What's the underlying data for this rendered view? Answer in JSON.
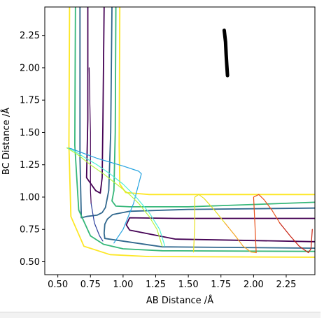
{
  "chart_data": {
    "type": "line",
    "xlabel": "AB Distance /Å",
    "ylabel": "BC Distance /Å",
    "xlim": [
      0.4,
      2.47
    ],
    "ylim": [
      0.4,
      2.47
    ],
    "xticks": [
      "0.50",
      "0.75",
      "1.00",
      "1.25",
      "1.50",
      "1.75",
      "2.00",
      "2.25"
    ],
    "yticks": [
      "0.50",
      "0.75",
      "1.00",
      "1.25",
      "1.50",
      "1.75",
      "2.00",
      "2.25"
    ],
    "grid": false,
    "contours": [
      {
        "color": "#440154",
        "points": [
          [
            0.855,
            2.47
          ],
          [
            0.845,
            1.55
          ],
          [
            0.84,
            1.15
          ],
          [
            0.825,
            1.03
          ],
          [
            0.79,
            1.05
          ],
          [
            0.72,
            1.15
          ],
          [
            0.73,
            1.6
          ],
          [
            0.73,
            2.47
          ]
        ]
      },
      {
        "color": "#440154",
        "points": [
          [
            2.47,
            0.655
          ],
          [
            1.4,
            0.675
          ],
          [
            1.05,
            0.745
          ],
          [
            1.025,
            0.785
          ],
          [
            1.05,
            0.84
          ],
          [
            1.4,
            0.835
          ],
          [
            2.47,
            0.835
          ]
        ]
      },
      {
        "color": "#31688e",
        "points": [
          [
            0.915,
            2.47
          ],
          [
            0.905,
            1.5
          ],
          [
            0.89,
            1.05
          ],
          [
            0.865,
            0.92
          ],
          [
            0.84,
            0.88
          ],
          [
            0.8,
            0.86
          ],
          [
            0.72,
            0.85
          ],
          [
            0.68,
            0.84
          ],
          [
            0.67,
            1.3
          ],
          [
            0.67,
            2.47
          ]
        ]
      },
      {
        "color": "#31688e",
        "points": [
          [
            2.47,
            0.915
          ],
          [
            1.5,
            0.905
          ],
          [
            1.05,
            0.89
          ],
          [
            0.92,
            0.865
          ],
          [
            0.88,
            0.83
          ],
          [
            0.86,
            0.79
          ],
          [
            0.855,
            0.72
          ],
          [
            0.86,
            0.68
          ],
          [
            1.3,
            0.615
          ],
          [
            2.47,
            0.605
          ]
        ]
      },
      {
        "color": "#35b779",
        "points": [
          [
            0.945,
            2.47
          ],
          [
            0.94,
            1.5
          ],
          [
            0.93,
            1.05
          ],
          [
            0.915,
            0.97
          ],
          [
            0.945,
            0.93
          ],
          [
            1.05,
            0.925
          ],
          [
            1.5,
            0.925
          ],
          [
            2.47,
            0.96
          ]
        ]
      },
      {
        "color": "#35b779",
        "points": [
          [
            0.635,
            2.47
          ],
          [
            0.63,
            1.4
          ],
          [
            0.66,
            0.9
          ],
          [
            0.75,
            0.7
          ],
          [
            0.85,
            0.635
          ],
          [
            1.0,
            0.6
          ],
          [
            1.3,
            0.585
          ],
          [
            2.47,
            0.58
          ]
        ]
      },
      {
        "color": "#fde725",
        "points": [
          [
            0.975,
            2.47
          ],
          [
            0.97,
            1.4
          ],
          [
            0.975,
            1.1
          ],
          [
            1.02,
            1.035
          ],
          [
            1.2,
            1.02
          ],
          [
            2.47,
            1.02
          ]
        ]
      },
      {
        "color": "#fde725",
        "points": [
          [
            0.59,
            2.47
          ],
          [
            0.585,
            1.4
          ],
          [
            0.6,
            0.85
          ],
          [
            0.7,
            0.62
          ],
          [
            0.9,
            0.555
          ],
          [
            1.2,
            0.54
          ],
          [
            2.47,
            0.535
          ]
        ]
      }
    ],
    "trajectories": [
      {
        "color": "#440154",
        "points": [
          [
            0.74,
            2.0
          ],
          [
            0.745,
            1.75
          ],
          [
            0.75,
            1.5
          ],
          [
            0.75,
            1.25
          ],
          [
            0.75,
            1.05
          ],
          [
            0.755,
            0.95
          ]
        ]
      },
      {
        "color": "#2b3f9c",
        "points": [
          [
            0.755,
            0.95
          ],
          [
            0.78,
            0.8
          ],
          [
            0.82,
            0.7
          ],
          [
            0.845,
            0.66
          ]
        ]
      },
      {
        "color": "#26a3e0",
        "points": [
          [
            0.93,
            0.645
          ],
          [
            1.0,
            0.75
          ],
          [
            1.08,
            0.95
          ],
          [
            1.14,
            1.18
          ],
          [
            1.12,
            1.2
          ],
          [
            1.0,
            1.24
          ],
          [
            0.8,
            1.3
          ],
          [
            0.6,
            1.375
          ],
          [
            0.57,
            1.38
          ]
        ]
      },
      {
        "color": "#4ff0d8",
        "points": [
          [
            0.57,
            1.38
          ],
          [
            0.62,
            1.36
          ],
          [
            0.7,
            1.31
          ],
          [
            0.8,
            1.25
          ],
          [
            0.9,
            1.18
          ],
          [
            1.0,
            1.1
          ],
          [
            1.1,
            1.0
          ],
          [
            1.2,
            0.88
          ],
          [
            1.28,
            0.75
          ],
          [
            1.32,
            0.62
          ]
        ]
      },
      {
        "color": "#b9f542",
        "points": [
          [
            0.57,
            1.38
          ],
          [
            0.65,
            1.33
          ],
          [
            0.75,
            1.25
          ],
          [
            0.85,
            1.18
          ],
          [
            0.95,
            1.1
          ],
          [
            1.05,
            1.02
          ],
          [
            1.12,
            0.95
          ],
          [
            1.2,
            0.85
          ],
          [
            1.26,
            0.75
          ],
          [
            1.3,
            0.62
          ]
        ]
      },
      {
        "color": "#e8e020",
        "points": [
          [
            1.54,
            0.575
          ],
          [
            1.55,
            0.8
          ],
          [
            1.55,
            1.0
          ],
          [
            1.58,
            1.02
          ],
          [
            1.62,
            0.99
          ],
          [
            1.7,
            0.9
          ],
          [
            1.78,
            0.8
          ]
        ]
      },
      {
        "color": "#f5a623",
        "points": [
          [
            1.78,
            0.8
          ],
          [
            1.86,
            0.7
          ],
          [
            1.92,
            0.62
          ],
          [
            1.98,
            0.575
          ],
          [
            2.02,
            0.57
          ]
        ]
      },
      {
        "color": "#e8501a",
        "points": [
          [
            2.02,
            0.57
          ],
          [
            2.01,
            0.8
          ],
          [
            2.0,
            1.0
          ],
          [
            2.04,
            1.02
          ],
          [
            2.08,
            0.98
          ],
          [
            2.14,
            0.9
          ],
          [
            2.2,
            0.8
          ]
        ]
      },
      {
        "color": "#c82010",
        "points": [
          [
            2.2,
            0.8
          ],
          [
            2.28,
            0.7
          ],
          [
            2.35,
            0.62
          ],
          [
            2.42,
            0.57
          ],
          [
            2.44,
            0.6
          ],
          [
            2.45,
            0.75
          ]
        ]
      }
    ],
    "black_marker": {
      "color": "#000000",
      "points": [
        [
          1.775,
          2.29
        ],
        [
          1.785,
          2.2
        ],
        [
          1.79,
          2.1
        ],
        [
          1.795,
          2.02
        ],
        [
          1.8,
          1.94
        ]
      ]
    }
  }
}
